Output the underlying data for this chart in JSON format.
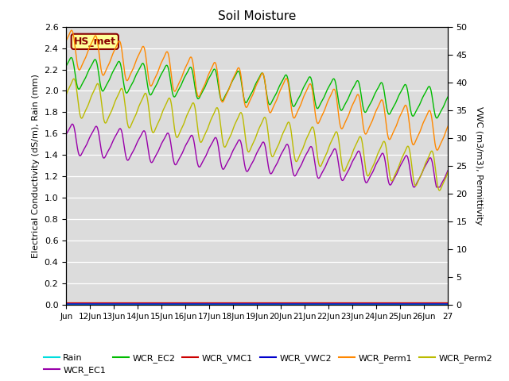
{
  "title": "Soil Moisture",
  "ylabel_left": "Electrical Conductivity (dS/m), Rain (mm)",
  "ylabel_right": "VWC (m3/m3), Permittivity",
  "ylim_left": [
    0.0,
    2.6
  ],
  "ylim_right": [
    0,
    50
  ],
  "xtick_labels": [
    "Jun",
    "12Jun",
    "13Jun",
    "14Jun",
    "15Jun",
    "16Jun",
    "17Jun",
    "18Jun",
    "19Jun",
    "20Jun",
    "21Jun",
    "22Jun",
    "23Jun",
    "24Jun",
    "25Jun",
    "26Jun",
    "27"
  ],
  "yticks_left": [
    0.0,
    0.2,
    0.4,
    0.6,
    0.8,
    1.0,
    1.2,
    1.4,
    1.6,
    1.8,
    2.0,
    2.2,
    2.4,
    2.6
  ],
  "yticks_right": [
    0,
    5,
    10,
    15,
    20,
    25,
    30,
    35,
    40,
    45,
    50
  ],
  "colors": {
    "Rain": "#00DDDD",
    "WCR_EC1": "#9900AA",
    "WCR_EC2": "#00BB00",
    "WCR_VMC1": "#CC0000",
    "WCR_VWC2": "#0000CC",
    "WCR_Perm1": "#FF8800",
    "WCR_Perm2": "#BBBB00"
  },
  "annotation_text": "HS_met",
  "annotation_color": "#880000",
  "annotation_bg": "#FFFF99",
  "background_color": "#DCDCDC",
  "grid_color": "#FFFFFF",
  "fig_bg": "#FFFFFF"
}
